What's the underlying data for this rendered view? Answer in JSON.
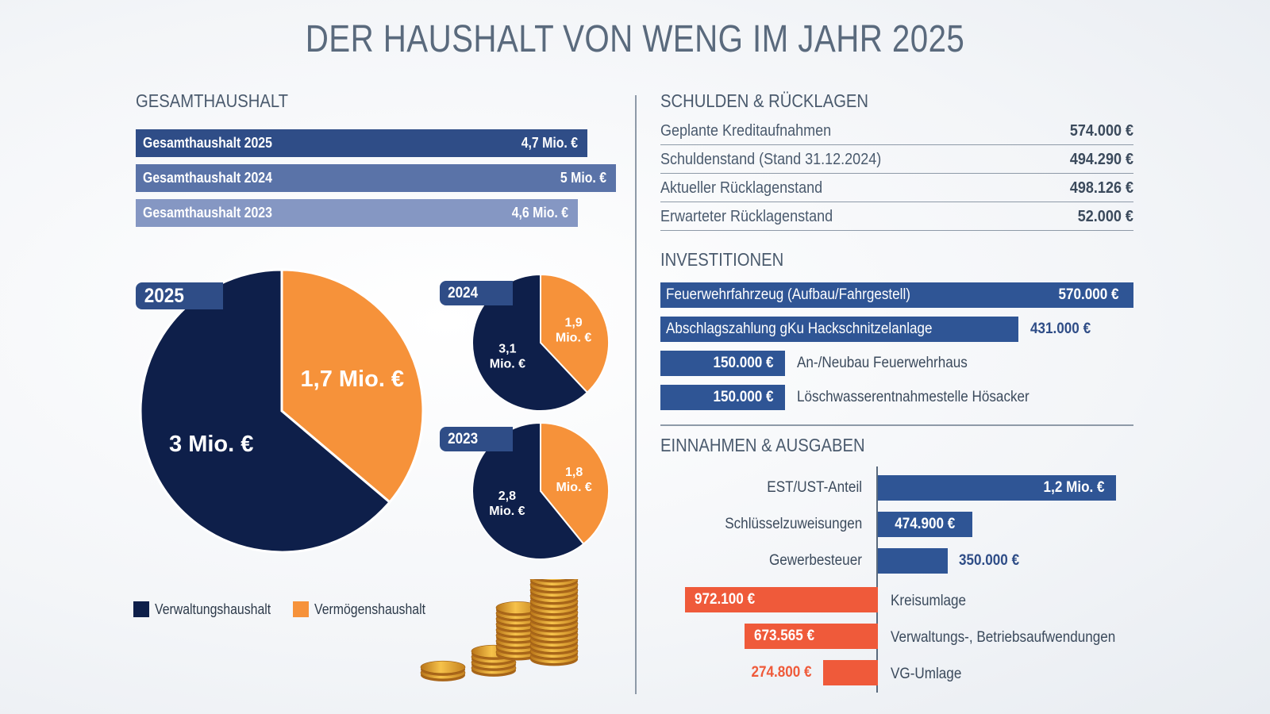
{
  "title": "DER HAUSHALT VON WENG IM JAHR 2025",
  "colors": {
    "navy": "#0e1f4a",
    "orange": "#f6923a",
    "bar_2025": "#2f4d87",
    "bar_2024": "#5a73a8",
    "bar_2023": "#8597c3",
    "blue": "#2f5595",
    "red": "#ef5a3a"
  },
  "left": {
    "heading": "GESAMTHAUSHALT",
    "legend": [
      {
        "label": "Verwaltungshaushalt",
        "color": "#0e1f4a"
      },
      {
        "label": "Vermögenshaushalt",
        "color": "#f6923a"
      }
    ]
  },
  "right": {
    "debt_heading": "SCHULDEN & RÜCKLAGEN",
    "invest_heading": "INVESTITIONEN",
    "income_heading": "EINNAHMEN & AUSGABEN"
  },
  "chart_data": [
    {
      "type": "bar",
      "orientation": "horizontal",
      "title": "GESAMTHAUSHALT",
      "categories": [
        "Gesamthaushalt 2025",
        "Gesamthaushalt 2024",
        "Gesamthaushalt 2023"
      ],
      "values": [
        4.7,
        5,
        4.6
      ],
      "labels": [
        "4,7 Mio. €",
        "5 Mio. €",
        "4,6 Mio. €"
      ]
    },
    {
      "type": "pie",
      "year": "2025",
      "series": [
        {
          "name": "Verwaltungshaushalt",
          "value": 3,
          "label": "3 Mio. €"
        },
        {
          "name": "Vermögenshaushalt",
          "value": 1.7,
          "label": "1,7 Mio. €"
        }
      ]
    },
    {
      "type": "pie",
      "year": "2024",
      "series": [
        {
          "name": "Verwaltungshaushalt",
          "value": 3.1,
          "label_lines": [
            "3,1",
            "Mio. €"
          ]
        },
        {
          "name": "Vermögenshaushalt",
          "value": 1.9,
          "label_lines": [
            "1,9",
            "Mio. €"
          ]
        }
      ]
    },
    {
      "type": "pie",
      "year": "2023",
      "series": [
        {
          "name": "Verwaltungshaushalt",
          "value": 2.8,
          "label_lines": [
            "2,8",
            "Mio. €"
          ]
        },
        {
          "name": "Vermögenshaushalt",
          "value": 1.8,
          "label_lines": [
            "1,8",
            "Mio. €"
          ]
        }
      ]
    },
    {
      "type": "table",
      "title": "SCHULDEN & RÜCKLAGEN",
      "rows": [
        {
          "label": "Geplante Kreditaufnahmen",
          "value": "574.000 €"
        },
        {
          "label": "Schuldenstand (Stand 31.12.2024)",
          "value": "494.290 €"
        },
        {
          "label": "Aktueller Rücklagenstand",
          "value": "498.126 €"
        },
        {
          "label": "Erwarteter Rücklagenstand",
          "value": "52.000 €"
        }
      ]
    },
    {
      "type": "bar",
      "orientation": "horizontal",
      "title": "INVESTITIONEN",
      "categories": [
        "Feuerwehrfahrzeug (Aufbau/Fahrgestell)",
        "Abschlagszahlung gKu Hackschnitzelanlage",
        "An-/Neubau Feuerwehrhaus",
        "Löschwasserentnahmestelle Hösacker"
      ],
      "values": [
        570000,
        431000,
        150000,
        150000
      ],
      "labels": [
        "570.000 €",
        "431.000 €",
        "150.000 €",
        "150.000 €"
      ]
    },
    {
      "type": "bar",
      "orientation": "horizontal",
      "title": "EINNAHMEN & AUSGABEN",
      "income": {
        "categories": [
          "EST/UST-Anteil",
          "Schlüsselzuweisungen",
          "Gewerbesteuer"
        ],
        "values": [
          1200000,
          474900,
          350000
        ],
        "labels": [
          "1,2 Mio. €",
          "474.900 €",
          "350.000 €"
        ]
      },
      "expenses": {
        "categories": [
          "Kreisumlage",
          "Verwaltungs-, Betriebsaufwendungen",
          "VG-Umlage"
        ],
        "values": [
          972100,
          673565,
          274800
        ],
        "labels": [
          "972.100 €",
          "673.565 €",
          "274.800 €"
        ]
      }
    }
  ]
}
